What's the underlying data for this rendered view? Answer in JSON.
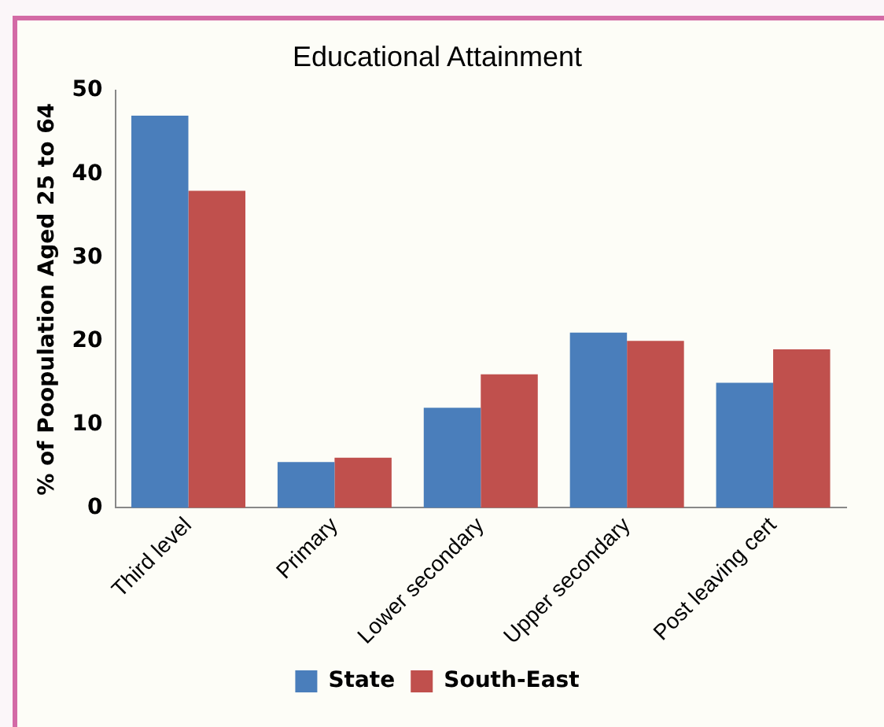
{
  "chart_data": {
    "type": "bar",
    "title": "Educational Attainment",
    "ylabel": "% of Poopulation Aged 25 to 64",
    "categories": [
      "Third level",
      "Primary",
      "Lower secondary",
      "Upper secondary",
      "Post leaving cert"
    ],
    "series": [
      {
        "name": "State",
        "color": "#4a7ebb",
        "values": [
          47,
          5.5,
          12,
          21,
          15
        ]
      },
      {
        "name": "South-East",
        "color": "#c0504d",
        "values": [
          38,
          6,
          16,
          20,
          19
        ]
      }
    ],
    "ylim": [
      0,
      50
    ],
    "yticks": [
      0,
      10,
      20,
      30,
      40,
      50
    ],
    "grid": false,
    "legend": "bottom"
  }
}
